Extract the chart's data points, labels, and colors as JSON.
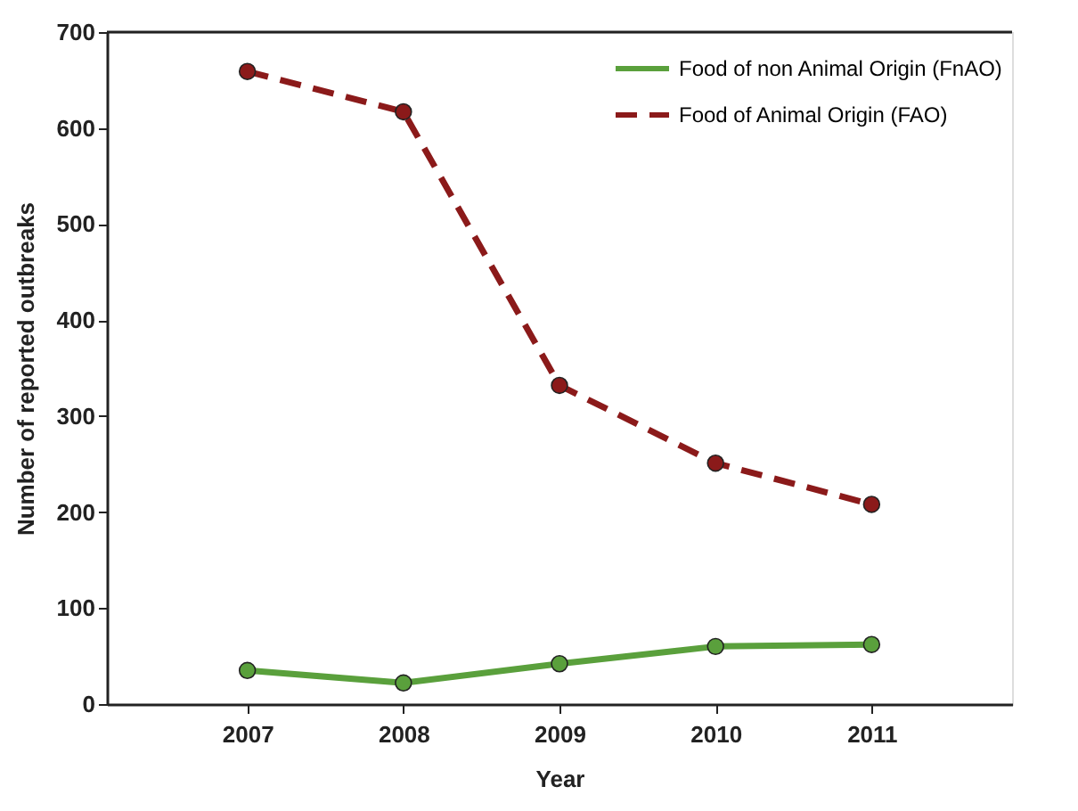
{
  "chart_data": {
    "type": "line",
    "xlabel": "Year",
    "ylabel": "Number of reported outbreaks",
    "x": [
      2007,
      2008,
      2009,
      2010,
      2011
    ],
    "series": [
      {
        "name": "Food of non Animal Origin (FnAO)",
        "color": "#5aa03c",
        "line_style": "solid",
        "values": [
          35,
          22,
          42,
          60,
          62
        ]
      },
      {
        "name": "Food of Animal Origin (FAO)",
        "color": "#8b1a1a",
        "line_style": "dashed",
        "values": [
          659,
          617,
          332,
          251,
          208
        ]
      }
    ],
    "xlim": [
      2006.1,
      2011.9
    ],
    "xticks": [
      2007,
      2008,
      2009,
      2010,
      2011
    ],
    "ylim": [
      0,
      700
    ],
    "yticks": [
      0,
      100,
      200,
      300,
      400,
      500,
      600,
      700
    ],
    "grid": false,
    "legend": "top right",
    "marker": "circle"
  }
}
